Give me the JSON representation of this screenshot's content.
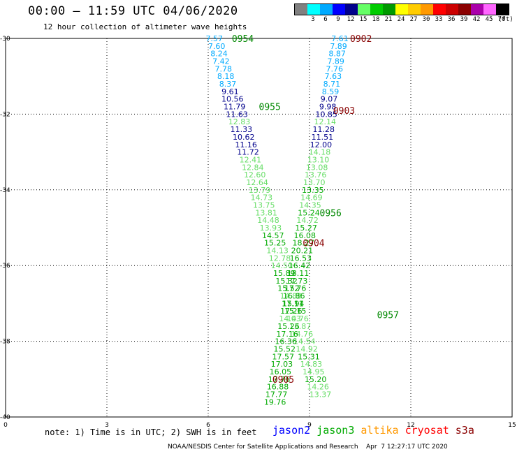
{
  "header": {
    "title": "00:00 – 11:59 UTC 04/06/2020",
    "subtitle": "12 hour collection of altimeter wave heights"
  },
  "colorbar": {
    "unit": "(ft)",
    "bins": [
      {
        "label": "",
        "color": "#808080"
      },
      {
        "label": "3",
        "color": "#00ffff"
      },
      {
        "label": "6",
        "color": "#00aaff"
      },
      {
        "label": "9",
        "color": "#0000ff"
      },
      {
        "label": "12",
        "color": "#00008b"
      },
      {
        "label": "15",
        "color": "#66ff66"
      },
      {
        "label": "18",
        "color": "#00cc00"
      },
      {
        "label": "21",
        "color": "#009900"
      },
      {
        "label": "24",
        "color": "#ffff00"
      },
      {
        "label": "27",
        "color": "#ffcc00"
      },
      {
        "label": "30",
        "color": "#ff9900"
      },
      {
        "label": "33",
        "color": "#ff0000"
      },
      {
        "label": "36",
        "color": "#cc0000"
      },
      {
        "label": "39",
        "color": "#8b0000"
      },
      {
        "label": "42",
        "color": "#aa00aa"
      },
      {
        "label": "45",
        "color": "#ff66ff"
      },
      {
        "label": "70",
        "color": "#000000"
      }
    ]
  },
  "footnote": "note: 1) Time is in UTC; 2) SWH is in feet",
  "legend": [
    {
      "name": "jason2",
      "color": "#0000ff"
    },
    {
      "name": "jason3",
      "color": "#00aa00"
    },
    {
      "name": "altika",
      "color": "#ff9900"
    },
    {
      "name": "cryosat",
      "color": "#ff0000"
    },
    {
      "name": "s3a",
      "color": "#8b0000"
    }
  ],
  "credits": "NOAA/NESDIS Center for Satellite Applications and Research    Apr  7 12:27:17 UTC 2020",
  "chart_data": {
    "type": "scatter",
    "xlim": [
      0,
      15
    ],
    "ylim": [
      -40,
      -30
    ],
    "x_ticks": [
      0,
      3,
      6,
      9,
      12,
      15
    ],
    "y_ticks": [
      -30,
      -32,
      -34,
      -36,
      -38,
      -40
    ],
    "grid": true,
    "passes": [
      {
        "label": "0954",
        "color": "#008800",
        "x": 6.7,
        "y": -30.0
      },
      {
        "label": "0955",
        "color": "#008800",
        "x": 7.5,
        "y": -31.8
      },
      {
        "label": "0956",
        "color": "#008800",
        "x": 9.3,
        "y": -34.6
      },
      {
        "label": "0957",
        "color": "#008800",
        "x": 11.0,
        "y": -37.3
      },
      {
        "label": "0902",
        "color": "#880000",
        "x": 10.2,
        "y": -30.0
      },
      {
        "label": "0903",
        "color": "#880000",
        "x": 9.7,
        "y": -31.9
      },
      {
        "label": "0904",
        "color": "#880000",
        "x": 8.8,
        "y": -35.4
      },
      {
        "label": "0905",
        "color": "#880000",
        "x": 7.9,
        "y": -39.0
      }
    ],
    "points": [
      {
        "x": 6.18,
        "y": -30.0,
        "v": "7.57",
        "c": "#00aaff"
      },
      {
        "x": 6.25,
        "y": -30.2,
        "v": "7.60",
        "c": "#00aaff"
      },
      {
        "x": 6.32,
        "y": -30.4,
        "v": "8.24",
        "c": "#00aaff"
      },
      {
        "x": 6.38,
        "y": -30.6,
        "v": "7.42",
        "c": "#00aaff"
      },
      {
        "x": 6.45,
        "y": -30.8,
        "v": "7.78",
        "c": "#00aaff"
      },
      {
        "x": 6.52,
        "y": -31.0,
        "v": "8.18",
        "c": "#00aaff"
      },
      {
        "x": 6.58,
        "y": -31.2,
        "v": "8.37",
        "c": "#00aaff"
      },
      {
        "x": 6.65,
        "y": -31.4,
        "v": "9.61",
        "c": "#00008b"
      },
      {
        "x": 6.72,
        "y": -31.6,
        "v": "10.56",
        "c": "#00008b"
      },
      {
        "x": 6.78,
        "y": -31.8,
        "v": "11.79",
        "c": "#00008b"
      },
      {
        "x": 6.85,
        "y": -32.0,
        "v": "11.63",
        "c": "#00008b"
      },
      {
        "x": 6.92,
        "y": -32.2,
        "v": "12.83",
        "c": "#66dd66"
      },
      {
        "x": 6.98,
        "y": -32.4,
        "v": "11.33",
        "c": "#00008b"
      },
      {
        "x": 7.05,
        "y": -32.6,
        "v": "10.62",
        "c": "#00008b"
      },
      {
        "x": 7.12,
        "y": -32.8,
        "v": "11.16",
        "c": "#00008b"
      },
      {
        "x": 7.18,
        "y": -33.0,
        "v": "11.72",
        "c": "#00008b"
      },
      {
        "x": 7.25,
        "y": -33.2,
        "v": "12.41",
        "c": "#66dd66"
      },
      {
        "x": 7.32,
        "y": -33.4,
        "v": "12.84",
        "c": "#66dd66"
      },
      {
        "x": 7.38,
        "y": -33.6,
        "v": "12.60",
        "c": "#66dd66"
      },
      {
        "x": 7.45,
        "y": -33.8,
        "v": "12.64",
        "c": "#66dd66"
      },
      {
        "x": 7.52,
        "y": -34.0,
        "v": "13.79",
        "c": "#66dd66"
      },
      {
        "x": 7.58,
        "y": -34.2,
        "v": "14.73",
        "c": "#66dd66"
      },
      {
        "x": 7.65,
        "y": -34.4,
        "v": "13.75",
        "c": "#66dd66"
      },
      {
        "x": 7.72,
        "y": -34.6,
        "v": "13.81",
        "c": "#66dd66"
      },
      {
        "x": 7.78,
        "y": -34.8,
        "v": "14.48",
        "c": "#66dd66"
      },
      {
        "x": 7.85,
        "y": -35.0,
        "v": "13.93",
        "c": "#66dd66"
      },
      {
        "x": 7.92,
        "y": -35.2,
        "v": "14.57",
        "c": "#00aa00"
      },
      {
        "x": 7.98,
        "y": -35.4,
        "v": "15.25",
        "c": "#00aa00"
      },
      {
        "x": 8.05,
        "y": -35.6,
        "v": "14.13",
        "c": "#66dd66"
      },
      {
        "x": 8.12,
        "y": -35.8,
        "v": "12.78",
        "c": "#66dd66"
      },
      {
        "x": 8.18,
        "y": -36.0,
        "v": "14.50",
        "c": "#66dd66"
      },
      {
        "x": 8.25,
        "y": -36.2,
        "v": "15.89",
        "c": "#00aa00"
      },
      {
        "x": 8.32,
        "y": -36.4,
        "v": "15.32",
        "c": "#00aa00"
      },
      {
        "x": 8.38,
        "y": -36.6,
        "v": "15.52",
        "c": "#00aa00"
      },
      {
        "x": 8.45,
        "y": -36.8,
        "v": "14.88",
        "c": "#66dd66"
      },
      {
        "x": 8.52,
        "y": -37.0,
        "v": "15.94",
        "c": "#00aa00"
      },
      {
        "x": 8.58,
        "y": -37.2,
        "v": "15.15",
        "c": "#00aa00"
      },
      {
        "x": 8.65,
        "y": -37.4,
        "v": "14.76",
        "c": "#66dd66"
      },
      {
        "x": 8.72,
        "y": -37.6,
        "v": "13.87",
        "c": "#66dd66"
      },
      {
        "x": 8.78,
        "y": -37.8,
        "v": "14.76",
        "c": "#66dd66"
      },
      {
        "x": 8.85,
        "y": -38.0,
        "v": "14.54",
        "c": "#66dd66"
      },
      {
        "x": 8.92,
        "y": -38.2,
        "v": "14.92",
        "c": "#66dd66"
      },
      {
        "x": 8.98,
        "y": -38.4,
        "v": "15.31",
        "c": "#00aa00"
      },
      {
        "x": 9.05,
        "y": -38.6,
        "v": "14.83",
        "c": "#66dd66"
      },
      {
        "x": 9.12,
        "y": -38.8,
        "v": "14.95",
        "c": "#66dd66"
      },
      {
        "x": 9.18,
        "y": -39.0,
        "v": "15.20",
        "c": "#00aa00"
      },
      {
        "x": 9.25,
        "y": -39.2,
        "v": "14.26",
        "c": "#66dd66"
      },
      {
        "x": 9.32,
        "y": -39.4,
        "v": "13.37",
        "c": "#66dd66"
      },
      {
        "x": 9.9,
        "y": -30.0,
        "v": "7.61",
        "c": "#00aaff"
      },
      {
        "x": 9.86,
        "y": -30.2,
        "v": "7.89",
        "c": "#00aaff"
      },
      {
        "x": 9.82,
        "y": -30.4,
        "v": "8.87",
        "c": "#00aaff"
      },
      {
        "x": 9.78,
        "y": -30.6,
        "v": "7.89",
        "c": "#00aaff"
      },
      {
        "x": 9.74,
        "y": -30.8,
        "v": "7.76",
        "c": "#00aaff"
      },
      {
        "x": 9.7,
        "y": -31.0,
        "v": "7.63",
        "c": "#00aaff"
      },
      {
        "x": 9.66,
        "y": -31.2,
        "v": "8.71",
        "c": "#00aaff"
      },
      {
        "x": 9.62,
        "y": -31.4,
        "v": "8.59",
        "c": "#00aaff"
      },
      {
        "x": 9.58,
        "y": -31.6,
        "v": "9.07",
        "c": "#00008b"
      },
      {
        "x": 9.54,
        "y": -31.8,
        "v": "9.98",
        "c": "#00008b"
      },
      {
        "x": 9.5,
        "y": -32.0,
        "v": "10.85",
        "c": "#00008b"
      },
      {
        "x": 9.46,
        "y": -32.2,
        "v": "12.14",
        "c": "#66dd66"
      },
      {
        "x": 9.42,
        "y": -32.4,
        "v": "11.28",
        "c": "#00008b"
      },
      {
        "x": 9.38,
        "y": -32.6,
        "v": "11.51",
        "c": "#00008b"
      },
      {
        "x": 9.34,
        "y": -32.8,
        "v": "12.00",
        "c": "#00008b"
      },
      {
        "x": 9.3,
        "y": -33.0,
        "v": "14.18",
        "c": "#66dd66"
      },
      {
        "x": 9.26,
        "y": -33.2,
        "v": "13.10",
        "c": "#66dd66"
      },
      {
        "x": 9.22,
        "y": -33.4,
        "v": "13.08",
        "c": "#66dd66"
      },
      {
        "x": 9.18,
        "y": -33.6,
        "v": "13.76",
        "c": "#66dd66"
      },
      {
        "x": 9.14,
        "y": -33.8,
        "v": "13.70",
        "c": "#66dd66"
      },
      {
        "x": 9.1,
        "y": -34.0,
        "v": "13.35",
        "c": "#00aa00"
      },
      {
        "x": 9.06,
        "y": -34.2,
        "v": "14.69",
        "c": "#66dd66"
      },
      {
        "x": 9.02,
        "y": -34.4,
        "v": "14.35",
        "c": "#66dd66"
      },
      {
        "x": 8.98,
        "y": -34.6,
        "v": "15.24",
        "c": "#00aa00"
      },
      {
        "x": 8.94,
        "y": -34.8,
        "v": "14.72",
        "c": "#66dd66"
      },
      {
        "x": 8.9,
        "y": -35.0,
        "v": "15.27",
        "c": "#00aa00"
      },
      {
        "x": 8.86,
        "y": -35.2,
        "v": "16.08",
        "c": "#00aa00"
      },
      {
        "x": 8.82,
        "y": -35.4,
        "v": "18.27",
        "c": "#00aa00"
      },
      {
        "x": 8.78,
        "y": -35.6,
        "v": "20.21",
        "c": "#00aa00"
      },
      {
        "x": 8.74,
        "y": -35.8,
        "v": "16.53",
        "c": "#00aa00"
      },
      {
        "x": 8.7,
        "y": -36.0,
        "v": "16.42",
        "c": "#00aa00"
      },
      {
        "x": 8.66,
        "y": -36.2,
        "v": "18.11",
        "c": "#00aa00"
      },
      {
        "x": 8.62,
        "y": -36.4,
        "v": "17.73",
        "c": "#00aa00"
      },
      {
        "x": 8.58,
        "y": -36.6,
        "v": "17.76",
        "c": "#00aa00"
      },
      {
        "x": 8.54,
        "y": -36.8,
        "v": "16.86",
        "c": "#00aa00"
      },
      {
        "x": 8.5,
        "y": -37.0,
        "v": "17.11",
        "c": "#00aa00"
      },
      {
        "x": 8.46,
        "y": -37.2,
        "v": "17.26",
        "c": "#00aa00"
      },
      {
        "x": 8.42,
        "y": -37.4,
        "v": "14.03",
        "c": "#66dd66"
      },
      {
        "x": 8.38,
        "y": -37.6,
        "v": "15.26",
        "c": "#00aa00"
      },
      {
        "x": 8.34,
        "y": -37.8,
        "v": "17.16",
        "c": "#00aa00"
      },
      {
        "x": 8.3,
        "y": -38.0,
        "v": "16.36",
        "c": "#00aa00"
      },
      {
        "x": 8.26,
        "y": -38.2,
        "v": "15.52",
        "c": "#00aa00"
      },
      {
        "x": 8.22,
        "y": -38.4,
        "v": "17.57",
        "c": "#00aa00"
      },
      {
        "x": 8.18,
        "y": -38.6,
        "v": "17.03",
        "c": "#00aa00"
      },
      {
        "x": 8.14,
        "y": -38.8,
        "v": "16.05",
        "c": "#00aa00"
      },
      {
        "x": 8.1,
        "y": -39.0,
        "v": "17.76",
        "c": "#00aa00"
      },
      {
        "x": 8.06,
        "y": -39.2,
        "v": "16.88",
        "c": "#00aa00"
      },
      {
        "x": 8.02,
        "y": -39.4,
        "v": "17.77",
        "c": "#00aa00"
      },
      {
        "x": 7.98,
        "y": -39.6,
        "v": "19.76",
        "c": "#00aa00"
      }
    ]
  }
}
